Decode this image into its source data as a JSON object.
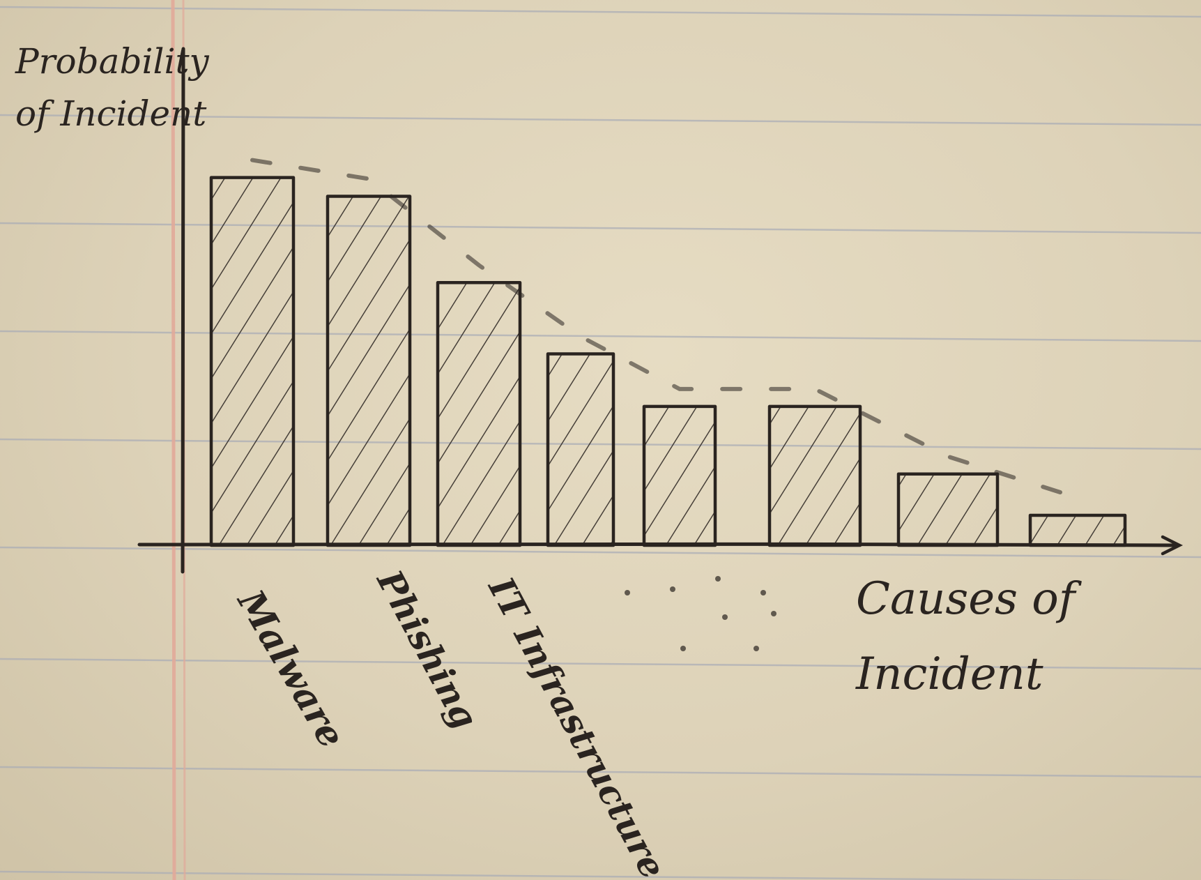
{
  "chart_data": {
    "type": "bar",
    "ylabel": "Probability of Incident",
    "xlabel": "Causes of Incident",
    "categories": [
      "Malware",
      "Phishing",
      "IT Infrastructure",
      "",
      "",
      "",
      "",
      ""
    ],
    "values": [
      98,
      93,
      70,
      51,
      37,
      37,
      19,
      8
    ],
    "ylim": [
      0,
      110
    ],
    "grid": false,
    "legend": "none",
    "trend_line": "dashed, decreasing, above bar tops",
    "ink_color": "#2a2420",
    "paper_color": "#e2d8bf",
    "rule_color": "#a9acb6",
    "margin_color": "#e2aa9a"
  }
}
